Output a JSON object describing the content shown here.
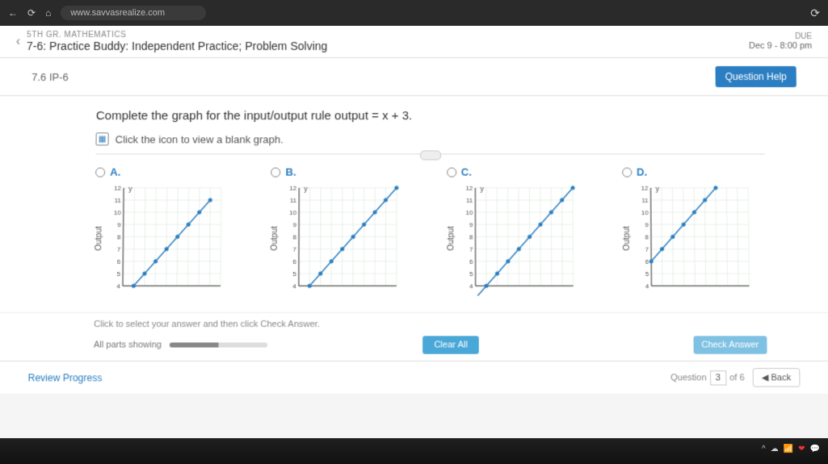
{
  "browser": {
    "url": "www.savvasrealize.com"
  },
  "header": {
    "grade": "5TH GR. MATHEMATICS",
    "lesson": "7-6: Practice Buddy: Independent Practice; Problem Solving",
    "due_label": "DUE",
    "due_date": "Dec 9 - 8:00 pm"
  },
  "problem": {
    "number": "7.6 IP-6",
    "help": "Question Help",
    "text": "Complete the graph for the input/output rule output = x + 3.",
    "hint": "Click the icon to view a blank graph."
  },
  "options": {
    "a": {
      "letter": "A.",
      "y_label": "Output",
      "y_ticks": [
        4,
        5,
        6,
        7,
        8,
        9,
        10,
        11,
        12
      ],
      "points": [
        [
          1,
          4
        ],
        [
          2,
          5
        ],
        [
          3,
          6
        ],
        [
          4,
          7
        ],
        [
          5,
          8
        ],
        [
          6,
          9
        ],
        [
          7,
          10
        ],
        [
          8,
          11
        ]
      ]
    },
    "b": {
      "letter": "B.",
      "y_label": "Output",
      "y_ticks": [
        4,
        5,
        6,
        7,
        8,
        9,
        10,
        11,
        12
      ],
      "points": [
        [
          1,
          4
        ],
        [
          2,
          5
        ],
        [
          3,
          6
        ],
        [
          4,
          7
        ],
        [
          5,
          8
        ],
        [
          6,
          9
        ],
        [
          7,
          10
        ],
        [
          8,
          11
        ],
        [
          9,
          12
        ]
      ]
    },
    "c": {
      "letter": "C.",
      "y_label": "Output",
      "y_ticks": [
        4,
        5,
        6,
        7,
        8,
        9,
        10,
        11,
        12
      ],
      "points": [
        [
          0,
          3
        ],
        [
          1,
          4
        ],
        [
          2,
          5
        ],
        [
          3,
          6
        ],
        [
          4,
          7
        ],
        [
          5,
          8
        ],
        [
          6,
          9
        ],
        [
          7,
          10
        ],
        [
          8,
          11
        ],
        [
          9,
          12
        ]
      ]
    },
    "d": {
      "letter": "D.",
      "y_label": "Output",
      "y_ticks": [
        4,
        5,
        6,
        7,
        8,
        9,
        10,
        11,
        12
      ],
      "points": [
        [
          0,
          6
        ],
        [
          1,
          7
        ],
        [
          2,
          8
        ],
        [
          3,
          9
        ],
        [
          4,
          10
        ],
        [
          5,
          11
        ],
        [
          6,
          12
        ]
      ]
    }
  },
  "footer": {
    "instruction": "Click to select your answer and then click Check Answer.",
    "progress_label": "All parts showing",
    "clear": "Clear All",
    "check": "Check Answer",
    "review": "Review Progress",
    "question_label": "Question",
    "q_current": "3",
    "q_total": "of 6",
    "back": "◀ Back"
  },
  "style": {
    "accent": "#2b7ec1",
    "grid": "#d0e0d0"
  }
}
